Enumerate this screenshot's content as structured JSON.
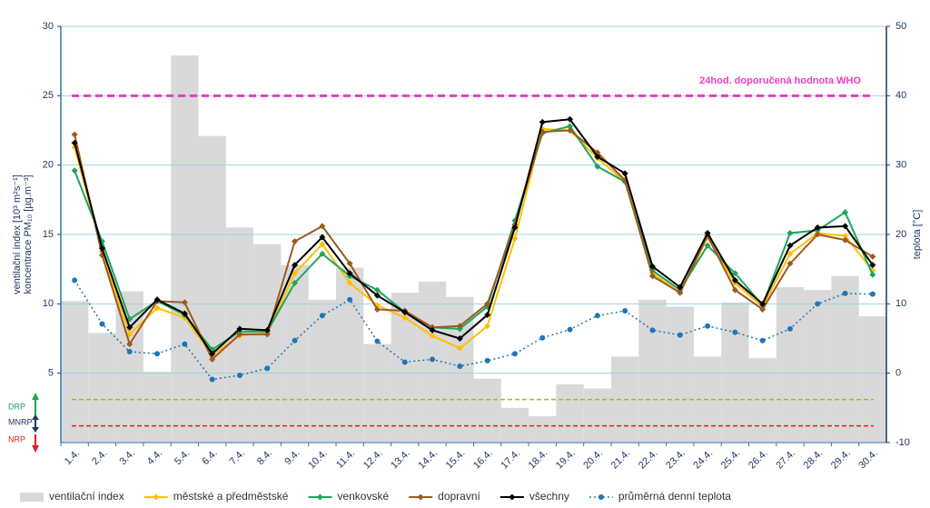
{
  "chart_data": {
    "type": "combo",
    "categories": [
      "1.4.",
      "2.4.",
      "3.4.",
      "4.4.",
      "5.4.",
      "6.4.",
      "7.4.",
      "8.4.",
      "9.4.",
      "10.4.",
      "11.4.",
      "12.4.",
      "13.4.",
      "14.4.",
      "15.4.",
      "16.4.",
      "17.4.",
      "18.4.",
      "19.4.",
      "20.4.",
      "21.4.",
      "22.4.",
      "23.4.",
      "24.4.",
      "25.4.",
      "26.4.",
      "27.4.",
      "28.4.",
      "29.4.",
      "30.4."
    ],
    "y_label_lines": [
      "ventilační index [10³ m²s⁻¹]",
      "koncentrace PM₁₀ [µg.m⁻³]"
    ],
    "y2_label": "teplota [°C]",
    "ylim": [
      0,
      30
    ],
    "yticks": [
      5,
      10,
      15,
      20,
      25,
      30
    ],
    "y2lim": [
      -10,
      50
    ],
    "y2ticks": [
      -10,
      0,
      10,
      20,
      30,
      40,
      50
    ],
    "grid": true,
    "series": [
      {
        "name": "ventilační index",
        "type": "bar",
        "color": "#d9d9d9",
        "axis": "y",
        "values": [
          10.2,
          7.9,
          10.9,
          5.1,
          27.9,
          22.1,
          15.5,
          14.3,
          12.8,
          10.3,
          12.6,
          7.1,
          10.8,
          11.6,
          10.5,
          4.6,
          2.5,
          1.9,
          4.2,
          3.9,
          6.2,
          10.3,
          9.8,
          6.2,
          10.1,
          6.1,
          11.2,
          11.0,
          12.0,
          9.1
        ]
      },
      {
        "name": "městské a předměstské",
        "type": "line",
        "marker": "diamond",
        "color": "#ffc000",
        "axis": "y",
        "values": [
          21.3,
          13.8,
          7.8,
          9.7,
          9.0,
          6.3,
          7.7,
          7.9,
          12.2,
          14.3,
          11.5,
          9.9,
          9.0,
          7.7,
          6.8,
          8.4,
          14.7,
          22.6,
          22.5,
          20.5,
          18.8,
          12.2,
          10.8,
          14.8,
          11.5,
          9.8,
          13.6,
          15.1,
          14.9,
          12.4
        ]
      },
      {
        "name": "venkovské",
        "type": "line",
        "marker": "diamond",
        "color": "#1fa55a",
        "axis": "y",
        "values": [
          19.6,
          14.5,
          8.9,
          10.2,
          9.2,
          6.7,
          8.0,
          8.0,
          11.5,
          13.6,
          12.0,
          11.0,
          9.4,
          8.3,
          8.2,
          9.8,
          16.0,
          22.3,
          22.8,
          19.9,
          18.8,
          12.4,
          11.0,
          14.2,
          12.2,
          9.9,
          15.1,
          15.3,
          16.6,
          12.1
        ]
      },
      {
        "name": "dopravní",
        "type": "line",
        "marker": "diamond",
        "color": "#9c5a1e",
        "axis": "y",
        "values": [
          22.2,
          13.5,
          7.1,
          10.2,
          10.1,
          6.0,
          7.8,
          7.8,
          14.5,
          15.6,
          12.9,
          9.6,
          9.5,
          8.3,
          8.4,
          10.0,
          15.7,
          22.4,
          22.5,
          20.9,
          18.9,
          12.0,
          10.8,
          14.9,
          11.0,
          9.6,
          12.9,
          15.0,
          14.6,
          13.4
        ]
      },
      {
        "name": "všechny",
        "type": "line",
        "marker": "diamond",
        "color": "#000000",
        "axis": "y",
        "values": [
          21.6,
          14.0,
          8.3,
          10.3,
          9.3,
          6.4,
          8.2,
          8.1,
          12.8,
          14.8,
          12.2,
          10.6,
          9.4,
          8.1,
          7.5,
          9.2,
          15.5,
          23.1,
          23.3,
          20.6,
          19.4,
          12.7,
          11.2,
          15.1,
          11.7,
          10.0,
          14.2,
          15.5,
          15.6,
          12.8
        ]
      },
      {
        "name": "průměrná denní teplota",
        "type": "line",
        "marker": "circle",
        "dotted": true,
        "color": "#1f77b4",
        "axis": "y2",
        "values": [
          13.4,
          7.1,
          3.1,
          2.8,
          4.2,
          -0.9,
          -0.3,
          0.7,
          4.7,
          8.3,
          10.6,
          4.6,
          1.6,
          2.0,
          1.0,
          1.8,
          2.8,
          5.1,
          6.3,
          8.3,
          9.0,
          6.2,
          5.5,
          6.8,
          5.9,
          4.7,
          6.4,
          10.0,
          11.5,
          11.4
        ]
      }
    ],
    "reference_lines": [
      {
        "label": "24hod. doporučená hodnota WHO",
        "value": 25,
        "color": "#e83fc4"
      },
      {
        "value": 3.1,
        "color": "#9cbf2b"
      },
      {
        "value": 1.2,
        "color": "#e02020"
      }
    ],
    "left_labels": [
      {
        "text": "DRP",
        "color": "#1fa55a"
      },
      {
        "text": "MNRP",
        "color": "#1f3864"
      },
      {
        "text": "NRP",
        "color": "#e02020"
      }
    ]
  }
}
